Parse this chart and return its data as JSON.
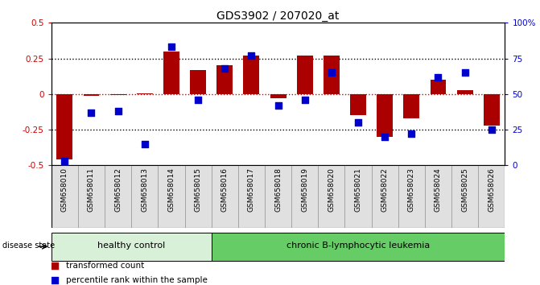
{
  "title": "GDS3902 / 207020_at",
  "samples": [
    "GSM658010",
    "GSM658011",
    "GSM658012",
    "GSM658013",
    "GSM658014",
    "GSM658015",
    "GSM658016",
    "GSM658017",
    "GSM658018",
    "GSM658019",
    "GSM658020",
    "GSM658021",
    "GSM658022",
    "GSM658023",
    "GSM658024",
    "GSM658025",
    "GSM658026"
  ],
  "transformed_count": [
    -0.46,
    -0.01,
    -0.005,
    0.005,
    0.3,
    0.17,
    0.2,
    0.27,
    -0.03,
    0.27,
    0.27,
    -0.15,
    -0.3,
    -0.17,
    0.1,
    0.03,
    -0.22
  ],
  "percentile_rank": [
    3,
    37,
    38,
    15,
    83,
    46,
    68,
    77,
    42,
    46,
    65,
    30,
    20,
    22,
    62,
    65,
    25
  ],
  "group_labels": [
    "healthy control",
    "chronic B-lymphocytic leukemia"
  ],
  "group_sizes": [
    6,
    11
  ],
  "group_colors_bg": [
    "#d8f0d8",
    "#66cc66"
  ],
  "bar_color": "#aa0000",
  "dot_color": "#0000cc",
  "ylim_left": [
    -0.5,
    0.5
  ],
  "ylim_right": [
    0,
    100
  ],
  "yticks_left": [
    -0.5,
    -0.25,
    0.0,
    0.25,
    0.5
  ],
  "yticks_right": [
    0,
    25,
    50,
    75,
    100
  ],
  "background_color": "#ffffff",
  "cell_color": "#e0e0e0"
}
